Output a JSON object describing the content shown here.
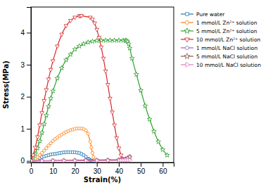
{
  "chart_data": {
    "type": "line",
    "xlabel": "Strain(%)",
    "ylabel": "Stress(MPa)",
    "xlim": [
      0,
      65
    ],
    "ylim": [
      -0.05,
      4.8
    ],
    "xticks": [
      0,
      10,
      20,
      30,
      40,
      50,
      60
    ],
    "yticks": [
      0,
      1,
      2,
      3,
      4
    ],
    "legend": "upper right",
    "series": [
      {
        "name": "Pure water",
        "marker": "square",
        "x": [
          0,
          1,
          2,
          3,
          4,
          5,
          6,
          7,
          8,
          9,
          10,
          11,
          12,
          13,
          14,
          15,
          16,
          17,
          18,
          19,
          20,
          21,
          22,
          23,
          24,
          25,
          26,
          26.5,
          27,
          27.5,
          28,
          28.5,
          29
        ],
        "values": [
          0,
          0.02,
          0.04,
          0.06,
          0.09,
          0.12,
          0.14,
          0.16,
          0.18,
          0.2,
          0.21,
          0.22,
          0.23,
          0.245,
          0.255,
          0.265,
          0.27,
          0.272,
          0.273,
          0.271,
          0.268,
          0.26,
          0.245,
          0.22,
          0.18,
          0.13,
          0.07,
          0.05,
          0.02,
          0.01,
          0.005,
          0.002,
          0.0
        ]
      },
      {
        "name": "1 mmol/L Zn²⁺ solution",
        "marker": "circle",
        "x": [
          0,
          1,
          2,
          3,
          4,
          5,
          6,
          7,
          8,
          9,
          10,
          11,
          12,
          13,
          14,
          15,
          16,
          17,
          18,
          19,
          20,
          21,
          22,
          23,
          24,
          25,
          26,
          27,
          27.5,
          28,
          28.5,
          29,
          30
        ],
        "values": [
          0,
          0.03,
          0.07,
          0.12,
          0.18,
          0.25,
          0.32,
          0.4,
          0.48,
          0.55,
          0.62,
          0.68,
          0.73,
          0.78,
          0.82,
          0.86,
          0.9,
          0.93,
          0.96,
          0.98,
          1.0,
          1.01,
          1.01,
          1.01,
          0.99,
          0.95,
          0.85,
          0.6,
          0.42,
          0.25,
          0.12,
          0.04,
          0.0
        ]
      },
      {
        "name": "5 mmol/L Zn²⁺ solution",
        "marker": "star",
        "x": [
          0,
          1,
          2,
          3,
          4,
          5,
          6,
          7,
          8,
          9,
          10,
          12,
          14,
          16,
          18,
          20,
          22,
          24,
          26,
          28,
          30,
          32,
          34,
          36,
          38,
          40,
          42,
          43,
          43.5,
          44,
          44.5,
          45,
          46,
          48,
          50,
          52,
          54,
          56,
          58,
          60,
          62
        ],
        "values": [
          0,
          0.1,
          0.22,
          0.4,
          0.62,
          0.88,
          1.15,
          1.42,
          1.7,
          1.95,
          2.18,
          2.58,
          2.9,
          3.15,
          3.32,
          3.48,
          3.58,
          3.65,
          3.7,
          3.73,
          3.75,
          3.76,
          3.76,
          3.76,
          3.76,
          3.76,
          3.76,
          3.76,
          3.75,
          3.72,
          3.65,
          3.52,
          3.2,
          2.7,
          2.2,
          1.72,
          1.3,
          0.92,
          0.6,
          0.35,
          0.18
        ]
      },
      {
        "name": "10 mmol/L Zn²⁺ solution",
        "marker": "triangle-down",
        "x": [
          0,
          1,
          2,
          3,
          4,
          5,
          6,
          7,
          8,
          9,
          10,
          12,
          14,
          16,
          18,
          20,
          22,
          22.5,
          23,
          27,
          28,
          29,
          30,
          31,
          32,
          33,
          34,
          35,
          36,
          37,
          38,
          39,
          40,
          41,
          42,
          43
        ],
        "values": [
          0,
          0.18,
          0.42,
          0.75,
          1.12,
          1.5,
          1.88,
          2.22,
          2.55,
          2.85,
          3.12,
          3.58,
          3.95,
          4.22,
          4.38,
          4.48,
          4.52,
          4.53,
          4.53,
          4.48,
          4.42,
          4.3,
          4.1,
          3.85,
          3.55,
          3.2,
          2.8,
          2.38,
          1.95,
          1.52,
          1.12,
          0.72,
          0.4,
          0.18,
          0.06,
          0.01
        ]
      },
      {
        "name": "1 mmol/L NaCl solution",
        "marker": "circle",
        "x": [
          0,
          5,
          10,
          15,
          20,
          25,
          30,
          35,
          40,
          41,
          42,
          43,
          44,
          45
        ],
        "values": [
          0,
          0.005,
          0.01,
          0.015,
          0.02,
          0.025,
          0.03,
          0.035,
          0.04,
          0.045,
          0.055,
          0.07,
          0.1,
          0.15
        ]
      },
      {
        "name": "5 mmol/L NaCl solution",
        "marker": "star",
        "x": [
          0,
          5,
          10,
          15,
          20,
          25,
          30,
          35,
          40,
          41,
          42,
          43,
          44,
          45
        ],
        "values": [
          0,
          0.003,
          0.006,
          0.009,
          0.012,
          0.015,
          0.018,
          0.022,
          0.028,
          0.032,
          0.04,
          0.055,
          0.08,
          0.12
        ]
      },
      {
        "name": "10 mmol/L NaCl solution",
        "marker": "triangle-right",
        "x": [
          0,
          5,
          10,
          15,
          20,
          25,
          30,
          35,
          40,
          41,
          42,
          43,
          44,
          45
        ],
        "values": [
          0,
          0.002,
          0.004,
          0.006,
          0.008,
          0.01,
          0.012,
          0.014,
          0.016,
          0.018,
          0.02,
          0.022,
          0.024,
          0.026
        ]
      }
    ]
  }
}
